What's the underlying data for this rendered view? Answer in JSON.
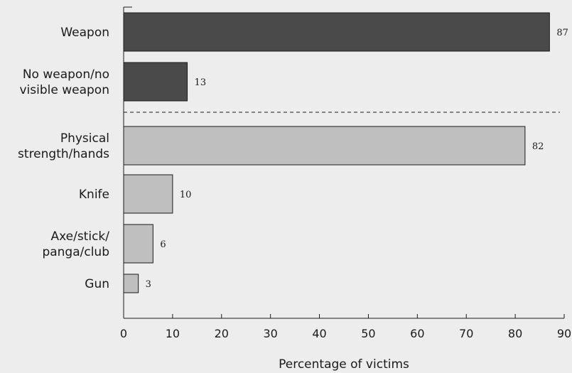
{
  "chart_data": {
    "type": "bar",
    "orientation": "horizontal",
    "categories": [
      [
        "Weapon"
      ],
      [
        "No weapon/no",
        "visible weapon"
      ],
      [
        "Physical",
        "strength/hands"
      ],
      [
        "Knife"
      ],
      [
        "Axe/stick/",
        "panga/club"
      ],
      [
        "Gun"
      ]
    ],
    "values": [
      87,
      13,
      82,
      10,
      6,
      3
    ],
    "bar_colors": [
      "#4a4a4a",
      "#4a4a4a",
      "#bfbfbf",
      "#bfbfbf",
      "#bfbfbf",
      "#bfbfbf"
    ],
    "separator_after_index": 1,
    "xlabel": "Percentage of victims",
    "xlim": [
      0,
      90
    ],
    "xticks": [
      0,
      10,
      20,
      30,
      40,
      50,
      60,
      70,
      80,
      90
    ],
    "grid": false
  }
}
